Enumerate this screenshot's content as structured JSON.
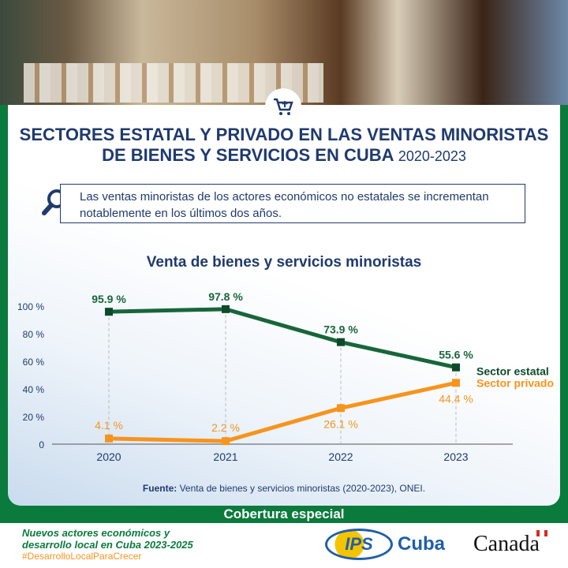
{
  "header": {
    "title_line1": "SECTORES ESTATAL Y PRIVADO EN LAS VENTAS MINORISTAS",
    "title_line2": "DE BIENES Y SERVICIOS EN CUBA",
    "title_years": "2020-2023",
    "cart_icon": "shopping-cart-icon"
  },
  "note": {
    "text": "Las ventas minoristas de los actores económicos no estatales se incrementan notablemente en los últimos dos años.",
    "icon": "magnifier-icon"
  },
  "chart_data": {
    "type": "line",
    "title": "Venta de bienes y servicios minoristas",
    "categories": [
      "2020",
      "2021",
      "2022",
      "2023"
    ],
    "ylim": [
      0,
      100
    ],
    "yticks": [
      0,
      20,
      40,
      60,
      80,
      100
    ],
    "ytick_labels": [
      "0",
      "20 %",
      "40 %",
      "60 %",
      "80 %",
      "100 %"
    ],
    "grid": false,
    "legend": "right",
    "series": [
      {
        "name": "Sector estatal",
        "values": [
          95.9,
          97.8,
          73.9,
          55.6
        ],
        "labels": [
          "95.9 %",
          "97.8 %",
          "73.9 %",
          "55.6 %"
        ],
        "color": "#17663a"
      },
      {
        "name": "Sector privado",
        "values": [
          4.1,
          2.2,
          26.1,
          44.4
        ],
        "labels": [
          "4.1 %",
          "2.2 %",
          "26.1 %",
          "44.4 %"
        ],
        "color": "#f7941d"
      }
    ]
  },
  "source": {
    "label": "Fuente:",
    "text": "Venta de bienes y servicios minoristas (2020-2023), ONEI."
  },
  "banner": "Cobertura especial",
  "footer": {
    "line1": "Nuevos actores económicos y",
    "line2": "desarrollo local en Cuba 2023-2025",
    "hashtag": "#DesarrolloLocalParaCrecer",
    "ips": "IPS",
    "ips_cuba": "Cuba",
    "canada": "Canada"
  }
}
